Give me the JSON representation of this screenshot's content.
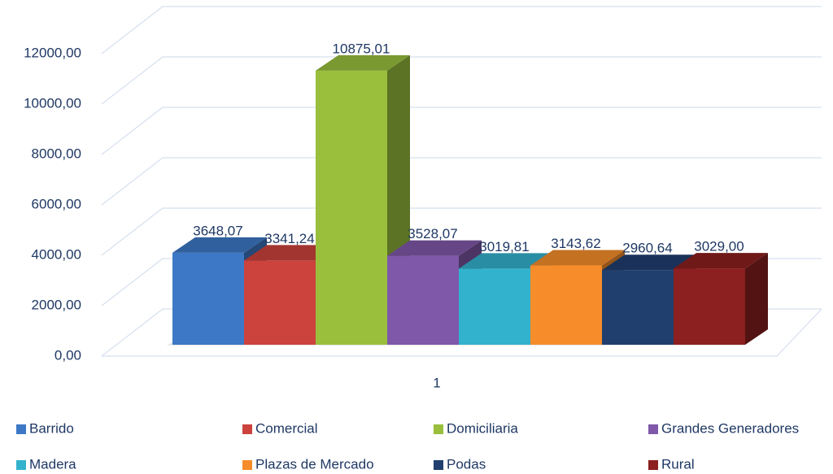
{
  "chart_data": {
    "type": "bar3d",
    "categories": [
      "1"
    ],
    "series": [
      {
        "name": "Barrido",
        "color": "#3d78c6",
        "values": [
          3648.07
        ],
        "value_labels": [
          "3648,07"
        ]
      },
      {
        "name": "Comercial",
        "color": "#cc423d",
        "values": [
          3341.24
        ],
        "value_labels": [
          "3341,24"
        ]
      },
      {
        "name": "Domiciliaria",
        "color": "#99bf3d",
        "values": [
          10875.01
        ],
        "value_labels": [
          "10875,01"
        ]
      },
      {
        "name": "Grandes Generadores",
        "color": "#7f58a9",
        "values": [
          3528.07
        ],
        "value_labels": [
          "3528,07"
        ]
      },
      {
        "name": "Madera",
        "color": "#33b2cd",
        "values": [
          3019.81
        ],
        "value_labels": [
          "3019,81"
        ]
      },
      {
        "name": "Plazas de Mercado",
        "color": "#f68d2a",
        "values": [
          3143.62
        ],
        "value_labels": [
          "3143,62"
        ]
      },
      {
        "name": "Podas",
        "color": "#203f6f",
        "values": [
          2960.64
        ],
        "value_labels": [
          "2960,64"
        ]
      },
      {
        "name": "Rural",
        "color": "#8c1f1f",
        "values": [
          3029.0
        ],
        "value_labels": [
          "3029,00"
        ]
      }
    ],
    "ylim": [
      0,
      12000
    ],
    "yticks": [
      {
        "value": 0,
        "label": "0,00"
      },
      {
        "value": 2000,
        "label": "2000,00"
      },
      {
        "value": 4000,
        "label": "4000,00"
      },
      {
        "value": 6000,
        "label": "6000,00"
      },
      {
        "value": 8000,
        "label": "8000,00"
      },
      {
        "value": 10000,
        "label": "10000,00"
      },
      {
        "value": 12000,
        "label": "12000,00"
      }
    ],
    "grid": true
  }
}
